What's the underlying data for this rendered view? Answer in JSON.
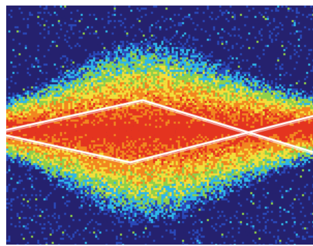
{
  "image": {
    "subject": "heatmap-trace",
    "palette": {
      "background": "#25216e",
      "low": "#2a48b8",
      "cyan": "#2fb6e8",
      "green": "#8ed04a",
      "yellow": "#f3de3a",
      "orange": "#f2861f",
      "red": "#e4341f",
      "trace": "#ffffff"
    },
    "has_outer_white_border": true,
    "has_two_crossing_white_envelope_lines": true
  }
}
